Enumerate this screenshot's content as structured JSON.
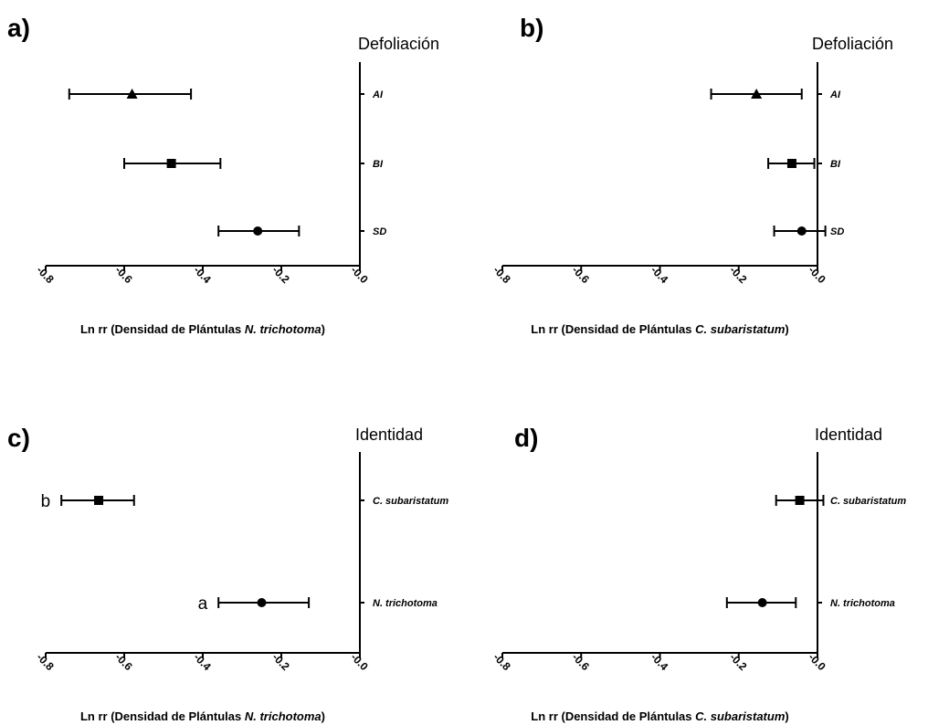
{
  "chart_data": [
    {
      "type": "scatter",
      "panel": "a)",
      "group_title": "Defoliación",
      "xlabel_prefix": "Ln rr (Densidad de Plántulas ",
      "xlabel_species": "N. trichotoma",
      "xlabel_suffix": ")",
      "xlim": [
        -0.8,
        0.0
      ],
      "xticks": [
        "-0.8",
        "-0.6",
        "-0.4",
        "-0.2",
        "-0.0"
      ],
      "points": [
        {
          "label": "AI",
          "x": -0.58,
          "lo": -0.74,
          "hi": -0.43,
          "marker": "triangle",
          "letter": ""
        },
        {
          "label": "BI",
          "x": -0.48,
          "lo": -0.6,
          "hi": -0.355,
          "marker": "square",
          "letter": ""
        },
        {
          "label": "SD",
          "x": -0.26,
          "lo": -0.36,
          "hi": -0.155,
          "marker": "circle",
          "letter": ""
        }
      ]
    },
    {
      "type": "scatter",
      "panel": "b)",
      "group_title": "Defoliación",
      "xlabel_prefix": "Ln rr (Densidad de Plántulas ",
      "xlabel_species": "C. subaristatum",
      "xlabel_suffix": ")",
      "xlim": [
        -0.8,
        0.0
      ],
      "xticks": [
        "-0.8",
        "-0.6",
        "-0.4",
        "-0.2",
        "-0.0"
      ],
      "points": [
        {
          "label": "AI",
          "x": -0.155,
          "lo": -0.27,
          "hi": -0.04,
          "marker": "triangle",
          "letter": ""
        },
        {
          "label": "BI",
          "x": -0.065,
          "lo": -0.125,
          "hi": -0.008,
          "marker": "square",
          "letter": ""
        },
        {
          "label": "SD",
          "x": -0.04,
          "lo": -0.11,
          "hi": 0.02,
          "marker": "circle",
          "letter": ""
        }
      ]
    },
    {
      "type": "scatter",
      "panel": "c)",
      "group_title": "Identidad",
      "xlabel_prefix": "Ln rr (Densidad de Plántulas ",
      "xlabel_species": "N. trichotoma",
      "xlabel_suffix": ")",
      "xlim": [
        -0.8,
        0.0
      ],
      "xticks": [
        "-0.8",
        "-0.6",
        "-0.4",
        "-0.2",
        "-0.0"
      ],
      "points": [
        {
          "label": "C. subaristatum",
          "x": -0.665,
          "lo": -0.76,
          "hi": -0.575,
          "marker": "square",
          "letter": "b"
        },
        {
          "label": "N. trichotoma",
          "x": -0.25,
          "lo": -0.36,
          "hi": -0.13,
          "marker": "circle",
          "letter": "a"
        }
      ]
    },
    {
      "type": "scatter",
      "panel": "d)",
      "group_title": "Identidad",
      "xlabel_prefix": "Ln rr (Densidad de Plántulas ",
      "xlabel_species": "C. subaristatum",
      "xlabel_suffix": ")",
      "xlim": [
        -0.8,
        0.0
      ],
      "xticks": [
        "-0.8",
        "-0.6",
        "-0.4",
        "-0.2",
        "-0.0"
      ],
      "points": [
        {
          "label": "C. subaristatum",
          "x": -0.045,
          "lo": -0.105,
          "hi": 0.015,
          "marker": "square",
          "letter": ""
        },
        {
          "label": "N. trichotoma",
          "x": -0.14,
          "lo": -0.23,
          "hi": -0.055,
          "marker": "circle",
          "letter": ""
        }
      ]
    }
  ]
}
